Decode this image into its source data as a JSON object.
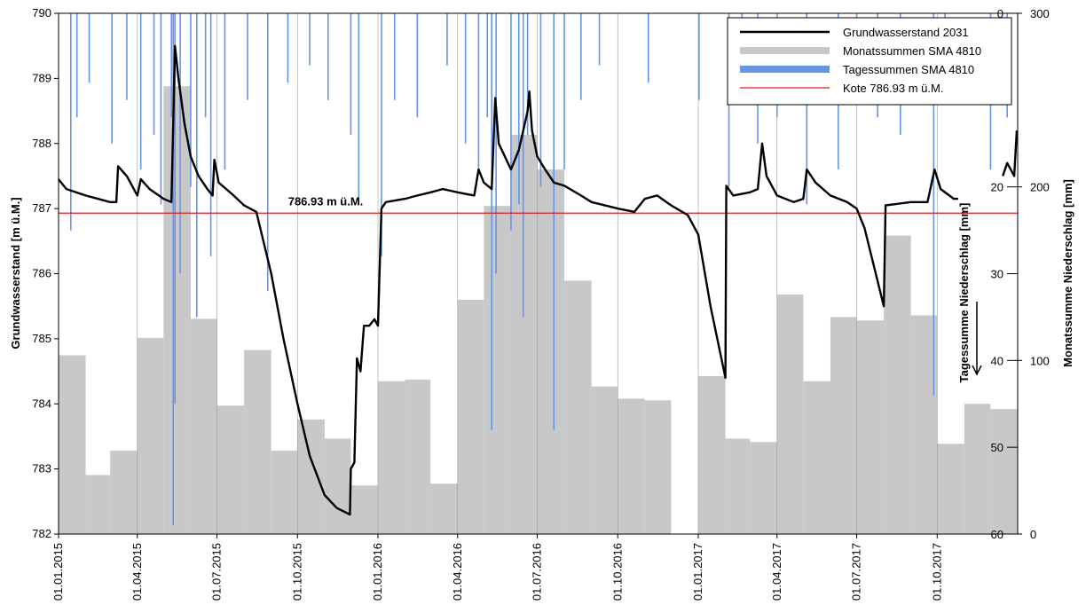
{
  "chart_data": {
    "type": "combo",
    "xlim": [
      "01.01.2015",
      "01.01.2018"
    ],
    "xticks": [
      "01.01.2015",
      "01.04.2015",
      "01.07.2015",
      "01.10.2015",
      "01.01.2016",
      "01.04.2016",
      "01.07.2016",
      "01.10.2016",
      "01.01.2017",
      "01.04.2017",
      "01.07.2017",
      "01.10.2017"
    ],
    "ylim": [
      782,
      790
    ],
    "yticks": [
      782,
      783,
      784,
      785,
      786,
      787,
      788,
      789,
      790
    ],
    "y2lim": [
      0,
      300
    ],
    "y2ticks": [
      0,
      100,
      200,
      300
    ],
    "y3lim": [
      0,
      60
    ],
    "y3ticks": [
      0,
      20,
      30,
      40,
      50,
      60
    ],
    "ylabel": "Grundwasserstand [m ü.M.]",
    "y2label": "Monatssumme Niederschlag [mm]",
    "y3label": "Tagessumme Niederschlag [mm]",
    "annotation": "786.93 m ü.M.",
    "legend": "upper right",
    "series": [
      {
        "name": "Grundwasserstand 2031",
        "type": "line",
        "color": "#000000",
        "x": [
          "01.01.2015",
          "10.01.2015",
          "01.02.2015",
          "01.03.2015",
          "08.03.2015",
          "10.03.2015",
          "20.03.2015",
          "01.04.2015",
          "05.04.2015",
          "15.04.2015",
          "01.05.2015",
          "10.05.2015",
          "14.05.2015",
          "18.05.2015",
          "25.05.2015",
          "01.06.2015",
          "10.06.2015",
          "20.06.2015",
          "26.06.2015",
          "28.06.2015",
          "03.07.2015",
          "20.07.2015",
          "01.08.2015",
          "15.08.2015",
          "01.09.2015",
          "15.09.2015",
          "01.10.2015",
          "15.10.2015",
          "01.11.2015",
          "15.11.2015",
          "30.11.2015",
          "01.12.2015",
          "05.12.2015",
          "08.12.2015",
          "12.12.2015",
          "16.12.2015",
          "22.12.2015",
          "28.12.2015",
          "01.01.2016",
          "05.01.2016",
          "10.01.2016",
          "01.02.2016",
          "15.02.2016",
          "01.03.2016",
          "15.03.2016",
          "01.04.2016",
          "20.04.2016",
          "25.04.2016",
          "01.05.2016",
          "10.05.2016",
          "14.05.2016",
          "18.05.2016",
          "25.05.2016",
          "01.06.2016",
          "10.06.2016",
          "20.06.2016",
          "22.06.2016",
          "25.06.2016",
          "01.07.2016",
          "10.07.2016",
          "20.07.2016",
          "01.08.2016",
          "20.08.2016",
          "01.09.2016",
          "01.10.2016",
          "20.10.2016",
          "01.11.2016",
          "15.11.2016",
          "01.12.2016",
          "20.12.2016",
          "01.01.2017",
          "15.01.2017",
          "01.02.2017",
          "02.02.2017",
          "10.02.2017",
          "01.03.2017",
          "10.03.2017",
          "15.03.2017",
          "20.03.2017",
          "01.04.2017",
          "20.04.2017",
          "01.05.2017",
          "05.05.2017",
          "15.05.2017",
          "01.06.2017",
          "20.06.2017",
          "01.07.2017",
          "10.07.2017",
          "01.08.2017",
          "03.08.2017",
          "01.09.2017",
          "20.09.2017",
          "28.09.2017",
          "05.10.2017",
          "20.10.2017",
          "25.10.2017",
          "01.11.2017",
          "15.12.2017",
          "20.12.2017",
          "28.12.2017",
          "31.12.2017"
        ],
        "values": [
          787.45,
          787.3,
          787.2,
          787.1,
          787.1,
          787.65,
          787.5,
          787.2,
          787.45,
          787.3,
          787.15,
          787.1,
          789.5,
          789.0,
          788.3,
          787.8,
          787.5,
          787.3,
          787.2,
          787.75,
          787.4,
          787.2,
          787.05,
          786.95,
          786.0,
          785.0,
          784.0,
          783.2,
          782.6,
          782.4,
          782.3,
          783.0,
          783.1,
          784.7,
          784.5,
          785.2,
          785.2,
          785.3,
          785.2,
          787.0,
          787.1,
          787.15,
          787.2,
          787.25,
          787.3,
          787.25,
          787.2,
          787.6,
          787.4,
          787.3,
          788.7,
          788.0,
          787.8,
          787.6,
          787.9,
          788.5,
          788.8,
          788.2,
          787.8,
          787.6,
          787.4,
          787.35,
          787.2,
          787.1,
          787.0,
          786.95,
          787.15,
          787.2,
          787.05,
          786.9,
          786.6,
          785.5,
          784.4,
          787.35,
          787.2,
          787.25,
          787.3,
          788.0,
          787.5,
          787.2,
          787.1,
          787.15,
          787.6,
          787.4,
          787.2,
          787.1,
          787.0,
          786.7,
          785.5,
          787.05,
          787.1,
          787.1,
          787.6,
          787.3,
          787.15,
          787.15,
          null,
          787.5,
          787.7,
          787.5,
          788.2
        ]
      },
      {
        "name": "Monatssummen SMA 4810",
        "type": "bar",
        "axis": "y2",
        "color": "#c8c8c8",
        "x": [
          "01.01.2015",
          "01.02.2015",
          "01.03.2015",
          "01.04.2015",
          "01.05.2015",
          "01.06.2015",
          "01.07.2015",
          "01.08.2015",
          "01.09.2015",
          "01.10.2015",
          "01.11.2015",
          "01.12.2015",
          "01.01.2016",
          "01.02.2016",
          "01.03.2016",
          "01.04.2016",
          "01.05.2016",
          "01.06.2016",
          "01.07.2016",
          "01.08.2016",
          "01.09.2016",
          "01.10.2016",
          "01.11.2016",
          "01.12.2016",
          "01.01.2017",
          "01.02.2017",
          "01.03.2017",
          "01.04.2017",
          "01.05.2017",
          "01.06.2017",
          "01.07.2017",
          "01.08.2017",
          "01.09.2017",
          "01.10.2017",
          "01.11.2017",
          "01.12.2017"
        ],
        "values": [
          103,
          34,
          48,
          113,
          258,
          124,
          74,
          106,
          48,
          66,
          55,
          28,
          88,
          89,
          29,
          135,
          189,
          230,
          210,
          146,
          85,
          78,
          77,
          0,
          91,
          55,
          53,
          138,
          88,
          125,
          123,
          172,
          126,
          52,
          75,
          72
        ]
      },
      {
        "name": "Tagessummen SMA 4810",
        "type": "bar",
        "axis": "y3",
        "color": "#6495ed",
        "x": [
          "15.01.2015",
          "22.01.2015",
          "05.02.2015",
          "03.03.2015",
          "20.03.2015",
          "05.04.2015",
          "20.04.2015",
          "28.04.2015",
          "10.05.2015",
          "12.05.2015",
          "14.05.2015",
          "20.05.2015",
          "01.06.2015",
          "08.06.2015",
          "18.06.2015",
          "24.06.2015",
          "10.07.2015",
          "05.08.2015",
          "28.08.2015",
          "20.09.2015",
          "15.10.2015",
          "05.11.2015",
          "01.12.2015",
          "10.12.2015",
          "05.01.2016",
          "20.01.2016",
          "15.02.2016",
          "20.03.2016",
          "10.04.2016",
          "25.04.2016",
          "05.05.2016",
          "10.05.2016",
          "15.05.2016",
          "01.06.2016",
          "10.06.2016",
          "15.06.2016",
          "20.06.2016",
          "05.07.2016",
          "20.07.2016",
          "01.08.2016",
          "20.08.2016",
          "10.09.2016",
          "05.11.2016",
          "02.01.2017",
          "05.02.2017",
          "20.02.2017",
          "10.03.2017",
          "01.04.2017",
          "05.05.2017",
          "10.06.2017",
          "01.07.2017",
          "25.07.2017",
          "20.08.2017",
          "27.09.2017",
          "10.10.2017",
          "01.12.2017",
          "20.12.2017"
        ],
        "values": [
          25,
          12,
          8,
          15,
          10,
          18,
          14,
          22,
          12,
          59,
          45,
          30,
          20,
          35,
          12,
          28,
          18,
          10,
          32,
          8,
          6,
          10,
          14,
          22,
          28,
          10,
          12,
          6,
          15,
          18,
          12,
          48,
          30,
          25,
          22,
          35,
          14,
          20,
          48,
          18,
          10,
          6,
          8,
          10,
          20,
          10,
          15,
          12,
          22,
          18,
          10,
          12,
          14,
          44,
          8,
          18,
          12
        ]
      },
      {
        "name": "Kote 786.93 m ü.M.",
        "type": "hline",
        "color": "#e31a1c",
        "values": [
          786.93
        ]
      }
    ]
  }
}
